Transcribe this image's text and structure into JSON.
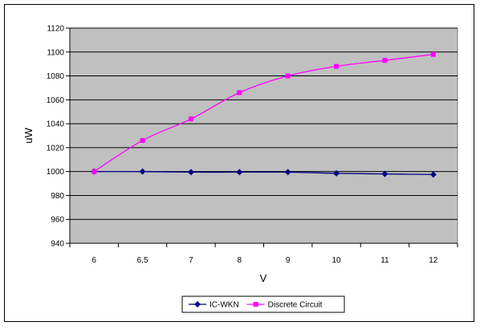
{
  "chart_data": {
    "type": "line",
    "title": "",
    "xlabel": "V",
    "ylabel": "uW",
    "categories": [
      "6",
      "6,5",
      "7",
      "8",
      "9",
      "10",
      "11",
      "12"
    ],
    "ylim": [
      940,
      1120
    ],
    "yticks": [
      940,
      960,
      980,
      1000,
      1020,
      1040,
      1060,
      1080,
      1100,
      1120
    ],
    "grid": true,
    "legend_position": "bottom",
    "series": [
      {
        "name": "IC-WKN",
        "values": [
          1000,
          1000,
          999.5,
          999.5,
          999.5,
          998.5,
          998,
          997.5
        ],
        "color": "#000080",
        "marker": "diamond"
      },
      {
        "name": "Discrete Circuit",
        "values": [
          1000,
          1026,
          1044,
          1066,
          1080,
          1088,
          1093,
          1098
        ],
        "color": "#ff00ff",
        "marker": "square"
      }
    ],
    "plot_background": "#c0c0c0"
  }
}
